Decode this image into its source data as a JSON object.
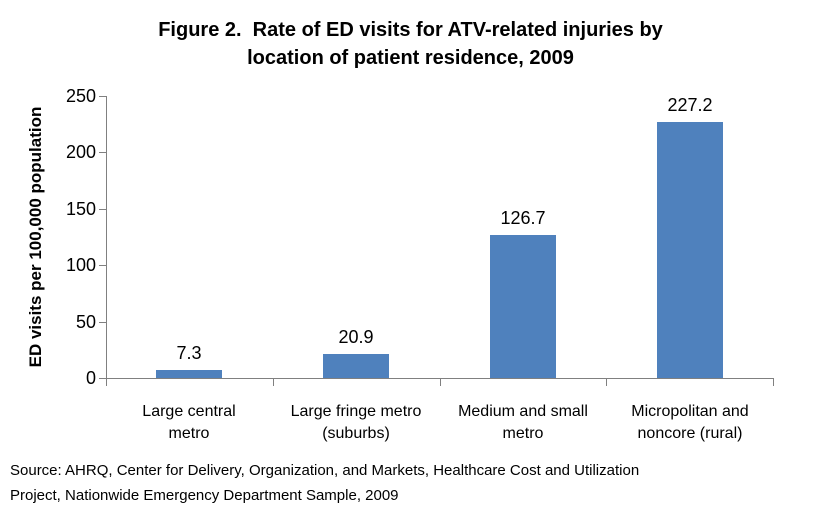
{
  "header": {
    "title_lines": [
      "Figure 2.  Rate of ED visits for ATV-related injuries by",
      "location of patient residence, 2009"
    ]
  },
  "chart_data": {
    "type": "bar",
    "title": "Figure 2. Rate of ED visits for ATV-related injuries by location of patient residence, 2009",
    "categories": [
      "Large central metro",
      "Large fringe metro (suburbs)",
      "Medium and small metro",
      "Micropolitan and noncore (rural)"
    ],
    "categories_wrapped": [
      [
        "Large central",
        "metro"
      ],
      [
        "Large fringe metro",
        "(suburbs)"
      ],
      [
        "Medium and small",
        "metro"
      ],
      [
        "Micropolitan and",
        "noncore (rural)"
      ]
    ],
    "values": [
      7.3,
      20.9,
      126.7,
      227.2
    ],
    "value_labels": [
      "7.3",
      "20.9",
      "126.7",
      "227.2"
    ],
    "xlabel": "",
    "ylabel": "ED visits per 100,000 population",
    "ylim": [
      0,
      250
    ],
    "yticks": [
      0,
      50,
      100,
      150,
      200,
      250
    ],
    "grid": false,
    "legend": "none",
    "bar_color": "#4F81BD",
    "axis_color": "#808080",
    "text_color": "#000000"
  },
  "footer": {
    "source_lines": [
      "Source: AHRQ, Center for Delivery, Organization, and Markets, Healthcare Cost and Utilization",
      "Project, Nationwide Emergency Department Sample, 2009"
    ]
  }
}
